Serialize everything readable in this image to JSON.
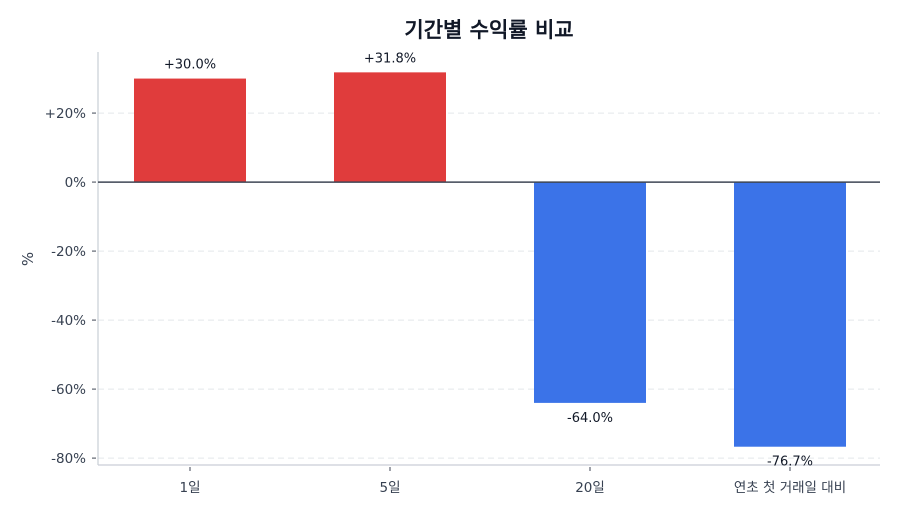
{
  "chart_data": {
    "type": "bar",
    "title": "기간별 수익률 비교",
    "xlabel": "",
    "ylabel": "%",
    "categories": [
      "1일",
      "5일",
      "20일",
      "연초 첫 거래일 대비"
    ],
    "values": [
      30.0,
      31.8,
      -64.0,
      -76.7
    ],
    "value_labels": [
      "+30.0%",
      "+31.8%",
      "-64.0%",
      "-76.7%"
    ],
    "ylim": [
      -82,
      37.7
    ],
    "yticks": [
      20,
      0,
      -20,
      -40,
      -60,
      -80
    ],
    "ytick_labels": [
      "+20%",
      "0%",
      "-20%",
      "-40%",
      "-60%",
      "-80%"
    ],
    "grid": {
      "y": true,
      "style": "dashed"
    },
    "legend": null,
    "colors": {
      "positive": "#e03c3c",
      "negative": "#3b73e8",
      "zero_line": "#3f4654",
      "grid": "#e3e6ea",
      "axis": "#c9ced6"
    }
  }
}
